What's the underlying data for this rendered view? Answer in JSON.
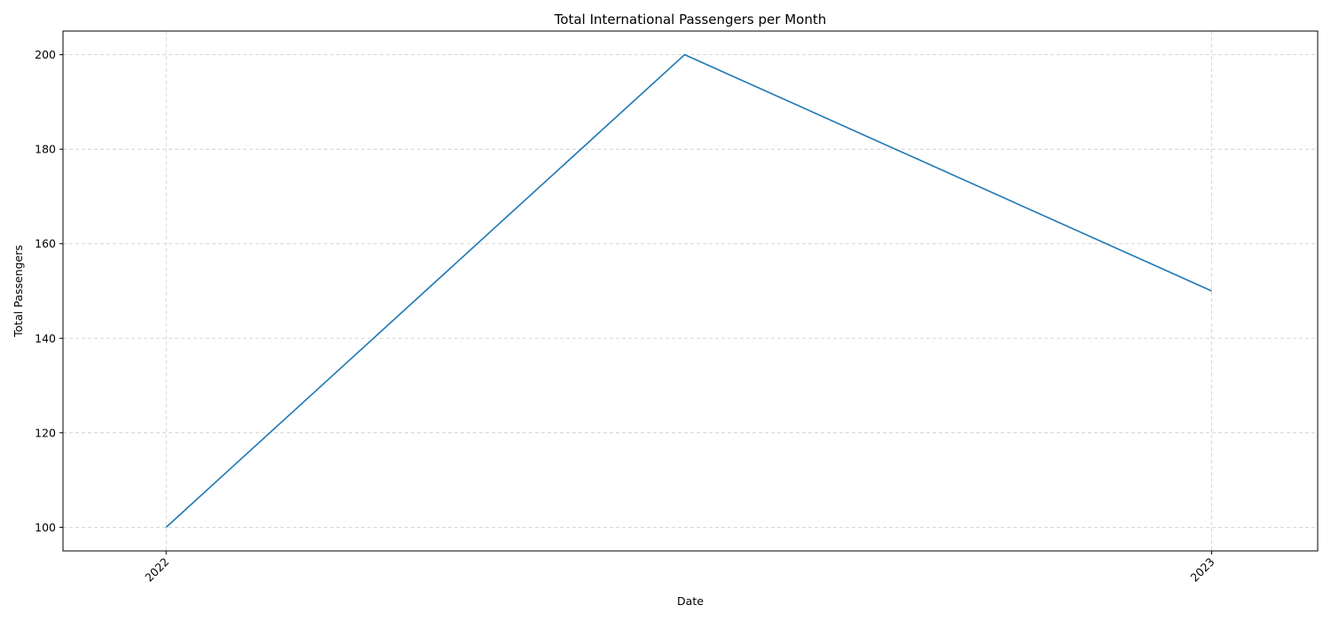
{
  "chart_data": {
    "type": "line",
    "title": "Total International Passengers per Month",
    "xlabel": "Date",
    "ylabel": "Total Passengers",
    "x": [
      "2022-01",
      "2022-07",
      "2023-01"
    ],
    "series": [
      {
        "values": [
          100,
          200,
          150
        ],
        "color": "#1f77b4"
      }
    ],
    "xlim": [
      "2021-11-26",
      "2023-02-07"
    ],
    "ylim": [
      95,
      205
    ],
    "x_ticks": [
      {
        "date": "2022-01",
        "label": "2022"
      },
      {
        "date": "2023-01",
        "label": "2023"
      }
    ],
    "y_ticks": [
      100,
      120,
      140,
      160,
      180,
      200
    ],
    "grid": true,
    "grid_style": "dashed",
    "legend": "none",
    "colors": {
      "line": "#1f77b4",
      "grid": "#cccccc",
      "axes": "#000000"
    }
  }
}
